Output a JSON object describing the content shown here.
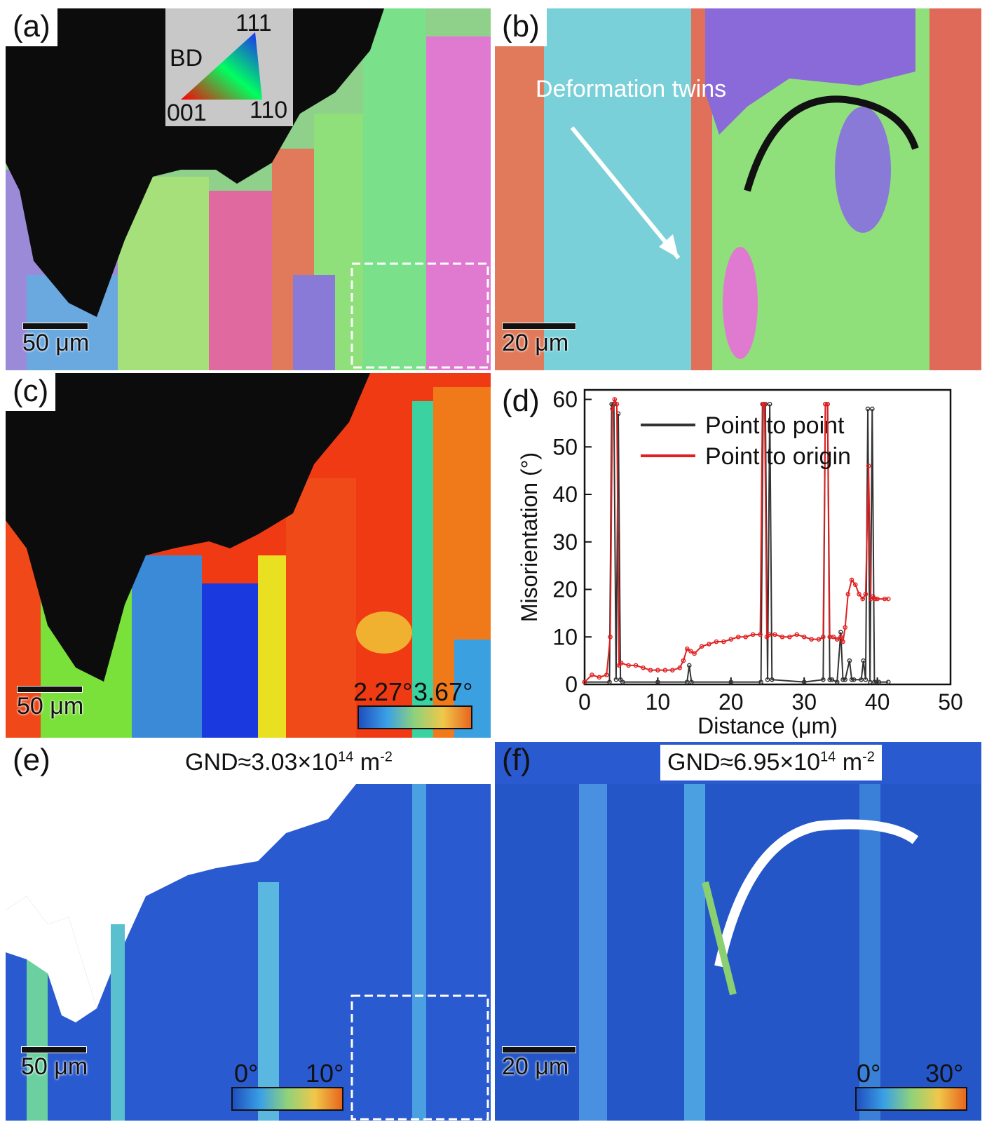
{
  "panels": {
    "a": {
      "label": "(a)",
      "scalebar": "50 μm",
      "ipf_key": {
        "bd": "BD",
        "v111": "111",
        "v001": "001",
        "v110": "110"
      }
    },
    "b": {
      "label": "(b)",
      "scalebar": "20 μm",
      "annotation": "Deformation twins"
    },
    "c": {
      "label": "(c)",
      "scalebar": "50 μm",
      "colorbar": {
        "min": "2.27°",
        "max": "3.67°"
      }
    },
    "d": {
      "label": "(d)"
    },
    "e": {
      "label": "(e)",
      "scalebar": "50 μm",
      "gnd_prefix": "GND≈3.03×10",
      "gnd_exp": "14",
      "gnd_unit": " m",
      "gnd_unit_exp": "-2",
      "colorbar": {
        "min": "0°",
        "max": "10°"
      }
    },
    "f": {
      "label": "(f)",
      "scalebar": "20 μm",
      "gnd_prefix": "GND≈6.95×10",
      "gnd_exp": "14",
      "gnd_unit": " m",
      "gnd_unit_exp": "-2",
      "colorbar": {
        "min": "0°",
        "max": "30°"
      }
    }
  },
  "colors": {
    "ipf_red": "#e0505a",
    "ipf_green": "#8fe07a",
    "ipf_blue": "#6a6ae0",
    "ipf_magenta": "#e06ad8",
    "map_blue": "#1f4fbf",
    "map_green": "#3bd23b",
    "map_red": "#f03a14",
    "map_yellow": "#f0e020",
    "series_point_to_point": "#333333",
    "series_point_to_origin": "#e02020"
  },
  "chart_data": {
    "type": "line",
    "xlabel": "Distance (μm)",
    "ylabel": "Misorientation (°)",
    "xlim": [
      0,
      50
    ],
    "ylim": [
      0,
      62
    ],
    "xticks": [
      0,
      10,
      20,
      30,
      40,
      50
    ],
    "yticks": [
      0,
      10,
      20,
      30,
      40,
      50,
      60
    ],
    "legend_position": "top",
    "series": [
      {
        "name": "Point to point",
        "color": "#333333",
        "x": [
          0,
          3.4,
          3.7,
          4.0,
          4.3,
          4.6,
          4.9,
          5.2,
          10,
          14,
          14.3,
          14.6,
          20,
          24.1,
          24.4,
          24.7,
          25.0,
          25.3,
          25.6,
          30,
          32.6,
          32.9,
          33.2,
          33.5,
          33.8,
          34.5,
          35.0,
          35.3,
          35.6,
          36.2,
          36.5,
          36.8,
          37.8,
          38.1,
          38.4,
          38.7,
          39.0,
          39.3,
          39.6,
          39.9,
          40.2,
          41.5
        ],
        "y": [
          0.5,
          0.5,
          59,
          59,
          1,
          57,
          1,
          0.5,
          0.5,
          0.5,
          4,
          0.5,
          0.5,
          0.5,
          59,
          59,
          1,
          59,
          1,
          0.5,
          1,
          59,
          59,
          1,
          1,
          0.5,
          11,
          1,
          1,
          5,
          1,
          1,
          1,
          5,
          1,
          58,
          0.5,
          58,
          0.5,
          0.5,
          0.5,
          0.5
        ]
      },
      {
        "name": "Point to origin",
        "color": "#e02020",
        "x": [
          0,
          1,
          2,
          3,
          3.5,
          3.8,
          4.1,
          4.4,
          4.7,
          5,
          6,
          7,
          8,
          9,
          10,
          11,
          12,
          13,
          13.5,
          14,
          14.5,
          15,
          16,
          17,
          18,
          19,
          20,
          21,
          22,
          23,
          24,
          24.3,
          24.6,
          24.9,
          25.2,
          26,
          27,
          28,
          29,
          30,
          31,
          32,
          32.6,
          32.9,
          33.2,
          33.5,
          34,
          34.5,
          35,
          35.3,
          35.6,
          36,
          36.5,
          37,
          37.5,
          38,
          38.4,
          38.8,
          39.1,
          39.4,
          39.7,
          40,
          41,
          41.5
        ],
        "y": [
          0.5,
          2,
          1.5,
          2,
          10,
          58,
          60,
          59,
          4,
          4.5,
          4,
          4,
          3.5,
          3,
          3,
          3,
          3,
          3.5,
          5,
          7.5,
          7,
          6.5,
          8,
          8.5,
          9,
          9,
          9.5,
          10,
          10,
          10.5,
          10.5,
          59,
          59,
          10,
          10.5,
          10.5,
          10,
          10,
          10.5,
          10,
          9.5,
          9.5,
          10,
          59,
          59,
          10,
          10,
          9.5,
          10,
          9,
          12,
          19,
          22,
          21,
          19,
          18,
          19,
          46,
          18,
          18.5,
          18,
          18,
          18,
          18
        ]
      }
    ]
  }
}
